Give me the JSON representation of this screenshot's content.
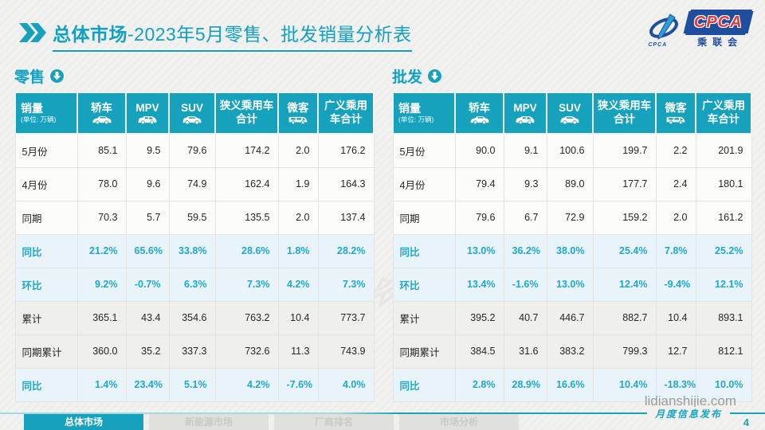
{
  "page": {
    "title_bold": "总体市场",
    "title_rest": "-2023年5月零售、批发销量分析表",
    "page_number": "4",
    "watermark_site": "lidianshijie.com",
    "footer_slogan": "月度信息发布",
    "watermark_logo": "CPCA 乘联会"
  },
  "logo": {
    "acronym": "CPCA",
    "cn": "乘联会",
    "emblem_sub": "CPCA"
  },
  "colors": {
    "accent_teal": "#16A2BD",
    "percent_text": "#1FA8CB",
    "percent_row_bg": "#E8F4F9",
    "shaded_row_bg": "#EFEFEB",
    "logo_red": "#E23A3C",
    "logo_blue": "#1F4E9C"
  },
  "icons": {
    "title_chevron": "double-chevron-right-icon",
    "section_arrow": "circle-down-arrow-icon",
    "sedan": "sedan-car-icon",
    "mpv": "mpv-car-icon",
    "suv": "suv-car-icon",
    "van": "minivan-icon"
  },
  "columns": [
    {
      "label": "销量",
      "sub": "(单位: 万辆)"
    },
    {
      "label": "轿车",
      "icon": "sedan-car-icon"
    },
    {
      "label": "MPV",
      "icon": "mpv-car-icon"
    },
    {
      "label": "SUV",
      "icon": "suv-car-icon"
    },
    {
      "label": "狭义乘用车合计"
    },
    {
      "label": "微客",
      "icon": "minivan-icon"
    },
    {
      "label": "广义乘用车合计"
    }
  ],
  "tables": [
    {
      "title": "零售",
      "rows": [
        {
          "label": "5月份",
          "kind": "plain",
          "values": [
            "85.1",
            "9.5",
            "79.6",
            "174.2",
            "2.0",
            "176.2"
          ]
        },
        {
          "label": "4月份",
          "kind": "plain",
          "values": [
            "78.0",
            "9.6",
            "74.9",
            "162.4",
            "1.9",
            "164.3"
          ]
        },
        {
          "label": "同期",
          "kind": "plain",
          "values": [
            "70.3",
            "5.7",
            "59.5",
            "135.5",
            "2.0",
            "137.4"
          ]
        },
        {
          "label": "同比",
          "kind": "percent",
          "values": [
            "21.2%",
            "65.6%",
            "33.8%",
            "28.6%",
            "1.8%",
            "28.2%"
          ]
        },
        {
          "label": "环比",
          "kind": "percent",
          "values": [
            "9.2%",
            "-0.7%",
            "6.3%",
            "7.3%",
            "4.2%",
            "7.3%"
          ]
        },
        {
          "label": "累计",
          "kind": "shaded",
          "values": [
            "365.1",
            "43.4",
            "354.6",
            "763.2",
            "10.4",
            "773.7"
          ]
        },
        {
          "label": "同期累计",
          "kind": "shaded",
          "values": [
            "360.0",
            "35.2",
            "337.3",
            "732.6",
            "11.3",
            "743.9"
          ]
        },
        {
          "label": "同比",
          "kind": "percent",
          "values": [
            "1.4%",
            "23.4%",
            "5.1%",
            "4.2%",
            "-7.6%",
            "4.0%"
          ]
        }
      ]
    },
    {
      "title": "批发",
      "rows": [
        {
          "label": "5月份",
          "kind": "plain",
          "values": [
            "90.0",
            "9.1",
            "100.6",
            "199.7",
            "2.2",
            "201.9"
          ]
        },
        {
          "label": "4月份",
          "kind": "plain",
          "values": [
            "79.4",
            "9.3",
            "89.0",
            "177.7",
            "2.4",
            "180.1"
          ]
        },
        {
          "label": "同期",
          "kind": "plain",
          "values": [
            "79.6",
            "6.7",
            "72.9",
            "159.2",
            "2.0",
            "161.2"
          ]
        },
        {
          "label": "同比",
          "kind": "percent",
          "values": [
            "13.0%",
            "36.2%",
            "38.0%",
            "25.4%",
            "7.8%",
            "25.2%"
          ]
        },
        {
          "label": "环比",
          "kind": "percent",
          "values": [
            "13.4%",
            "-1.6%",
            "13.0%",
            "12.4%",
            "-9.4%",
            "12.1%"
          ]
        },
        {
          "label": "累计",
          "kind": "shaded",
          "values": [
            "395.2",
            "40.7",
            "446.7",
            "882.7",
            "10.4",
            "893.1"
          ]
        },
        {
          "label": "同期累计",
          "kind": "shaded",
          "values": [
            "384.5",
            "31.6",
            "383.2",
            "799.3",
            "12.7",
            "812.1"
          ]
        },
        {
          "label": "同比",
          "kind": "percent",
          "values": [
            "2.8%",
            "28.9%",
            "16.6%",
            "10.4%",
            "-18.3%",
            "10.0%"
          ]
        }
      ]
    }
  ],
  "footer_tabs": [
    {
      "label": "总体市场",
      "active": true
    },
    {
      "label": "新能源市场",
      "active": false
    },
    {
      "label": "厂商排名",
      "active": false
    },
    {
      "label": "市场分析",
      "active": false
    }
  ]
}
